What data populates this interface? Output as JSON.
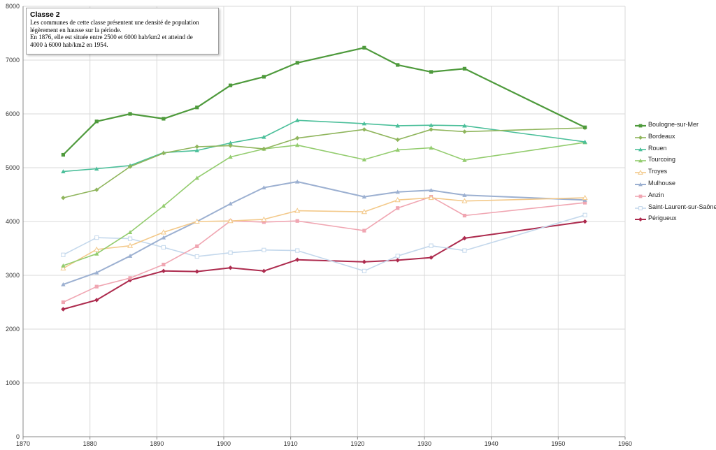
{
  "note": {
    "title": "Classe 2",
    "lines": [
      "Les communes de cette classe présentent  une densité de population",
      "légèrement en hausse sur la période.",
      "En 1876, elle est située entre 2500 et 6000 hab/km2  et atteind  de",
      "4000 à 6000 hab/km2 en 1954."
    ]
  },
  "chart_data": {
    "type": "line",
    "title": "Classe 2",
    "xlabel": "",
    "ylabel": "",
    "xlim": [
      1870,
      1960
    ],
    "ylim": [
      0,
      8000
    ],
    "xticks": [
      1870,
      1880,
      1890,
      1900,
      1910,
      1920,
      1930,
      1940,
      1950,
      1960
    ],
    "yticks": [
      0,
      1000,
      2000,
      3000,
      4000,
      5000,
      6000,
      7000,
      8000
    ],
    "grid": true,
    "legend_position": "right",
    "x": [
      1876,
      1881,
      1886,
      1891,
      1896,
      1901,
      1906,
      1911,
      1921,
      1926,
      1931,
      1936,
      1954
    ],
    "series": [
      {
        "name": "Boulogne-sur-Mer",
        "color": "#4e9a3c",
        "marker": "square",
        "width": 2.2,
        "values": [
          5240,
          5860,
          6000,
          5910,
          6120,
          6530,
          6690,
          6950,
          7230,
          6910,
          6780,
          6840,
          5750
        ]
      },
      {
        "name": "Bordeaux",
        "color": "#8fb55c",
        "marker": "diamond",
        "width": 1.6,
        "values": [
          4440,
          4590,
          5020,
          5270,
          5390,
          5410,
          5350,
          5550,
          5710,
          5520,
          5710,
          5670,
          5740
        ]
      },
      {
        "name": "Rouen",
        "color": "#4bbf9a",
        "marker": "triangle",
        "width": 1.6,
        "values": [
          4930,
          4980,
          5040,
          5280,
          5320,
          5460,
          5570,
          5880,
          5820,
          5780,
          5790,
          5780,
          5480
        ]
      },
      {
        "name": "Tourcoing",
        "color": "#93cc6e",
        "marker": "triangle",
        "width": 1.6,
        "values": [
          3180,
          3400,
          3800,
          4290,
          4810,
          5200,
          5350,
          5420,
          5150,
          5330,
          5370,
          5140,
          5470
        ]
      },
      {
        "name": "Troyes",
        "color": "#f3c98a",
        "marker": "triangle-open",
        "width": 1.6,
        "values": [
          3130,
          3480,
          3550,
          3800,
          4000,
          4010,
          4040,
          4200,
          4180,
          4400,
          4440,
          4380,
          4440
        ]
      },
      {
        "name": "Mulhouse",
        "color": "#9cb0d1",
        "marker": "triangle",
        "width": 2,
        "values": [
          2830,
          3050,
          3360,
          3700,
          4000,
          4330,
          4630,
          4740,
          4460,
          4550,
          4580,
          4490,
          4400
        ]
      },
      {
        "name": "Anzin",
        "color": "#f0a6b2",
        "marker": "square",
        "width": 1.6,
        "values": [
          2500,
          2790,
          2950,
          3200,
          3540,
          4010,
          3990,
          4010,
          3830,
          4250,
          4460,
          4110,
          4350
        ]
      },
      {
        "name": "Saint-Laurent-sur-Saône",
        "color": "#c4d8ec",
        "marker": "square-open",
        "width": 1.6,
        "values": [
          3380,
          3700,
          3680,
          3520,
          3350,
          3420,
          3470,
          3460,
          3080,
          3360,
          3550,
          3460,
          4120
        ]
      },
      {
        "name": "Périgueux",
        "color": "#ad2b4e",
        "marker": "diamond",
        "width": 2,
        "values": [
          2370,
          2540,
          2910,
          3080,
          3070,
          3140,
          3080,
          3290,
          3250,
          3280,
          3330,
          3690,
          4000
        ]
      }
    ]
  }
}
